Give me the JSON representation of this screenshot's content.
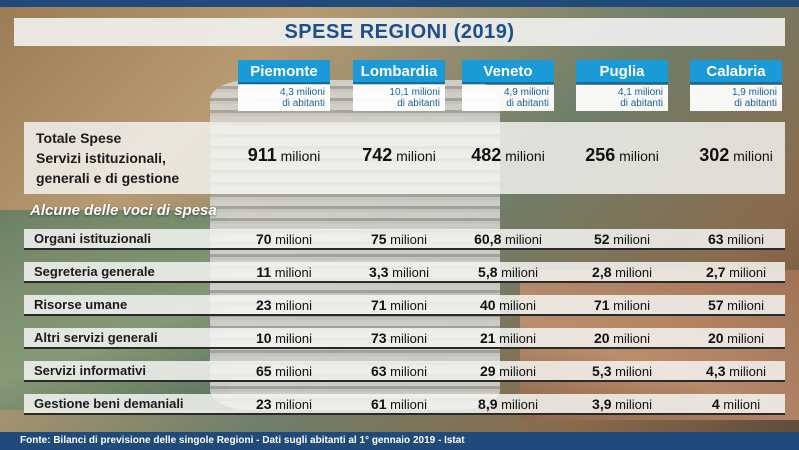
{
  "title": "SPESE REGIONI (2019)",
  "regions": [
    {
      "name": "Piemonte",
      "pop_line1": "4,3 milioni",
      "pop_line2": "di abitanti"
    },
    {
      "name": "Lombardia",
      "pop_line1": "10,1 milioni",
      "pop_line2": "di abitanti"
    },
    {
      "name": "Veneto",
      "pop_line1": "4,9 milioni",
      "pop_line2": "di abitanti"
    },
    {
      "name": "Puglia",
      "pop_line1": "4,1 milioni",
      "pop_line2": "di abitanti"
    },
    {
      "name": "Calabria",
      "pop_line1": "1,9 milioni",
      "pop_line2": "di abitanti"
    }
  ],
  "total": {
    "label_line1": "Totale Spese",
    "label_line2": "Servizi istituzionali,",
    "label_line3": "generali e di gestione",
    "values": [
      "911",
      "742",
      "482",
      "256",
      "302"
    ],
    "unit": "milioni"
  },
  "subheader": "Alcune delle voci di spesa",
  "unit": "milioni",
  "rows": [
    {
      "label": "Organi istituzionali",
      "values": [
        "70",
        "75",
        "60,8",
        "52",
        "63"
      ]
    },
    {
      "label": "Segreteria generale",
      "values": [
        "11",
        "3,3",
        "5,8",
        "2,8",
        "2,7"
      ]
    },
    {
      "label": "Risorse umane",
      "values": [
        "23",
        "71",
        "40",
        "71",
        "57"
      ]
    },
    {
      "label": "Altri servizi generali",
      "values": [
        "10",
        "73",
        "21",
        "20",
        "20"
      ]
    },
    {
      "label": "Servizi informativi",
      "values": [
        "65",
        "63",
        "29",
        "5,3",
        "4,3"
      ]
    },
    {
      "label": "Gestione beni demaniali",
      "values": [
        "23",
        "61",
        "8,9",
        "3,9",
        "4"
      ]
    }
  ],
  "source": "Fonte: Bilanci di previsione delle singole Regioni  -  Dati sugli abitanti al 1° gennaio 2019 - Istat",
  "colors": {
    "header_blue": "#1a9ad6",
    "title_blue": "#1e4f8c",
    "bar_dark": "#1f4a7a"
  },
  "chart_data": {
    "type": "table",
    "title": "SPESE REGIONI (2019)",
    "columns": [
      "Piemonte",
      "Lombardia",
      "Veneto",
      "Puglia",
      "Calabria"
    ],
    "rows": [
      {
        "label": "Totale Spese Servizi istituzionali, generali e di gestione",
        "values": [
          911,
          742,
          482,
          256,
          302
        ]
      },
      {
        "label": "Organi istituzionali",
        "values": [
          70,
          75,
          60.8,
          52,
          63
        ]
      },
      {
        "label": "Segreteria generale",
        "values": [
          11,
          3.3,
          5.8,
          2.8,
          2.7
        ]
      },
      {
        "label": "Risorse umane",
        "values": [
          23,
          71,
          40,
          71,
          57
        ]
      },
      {
        "label": "Altri servizi generali",
        "values": [
          10,
          73,
          21,
          20,
          20
        ]
      },
      {
        "label": "Servizi informativi",
        "values": [
          65,
          63,
          29,
          5.3,
          4.3
        ]
      },
      {
        "label": "Gestione beni demaniali",
        "values": [
          23,
          61,
          8.9,
          3.9,
          4
        ]
      }
    ]
  }
}
